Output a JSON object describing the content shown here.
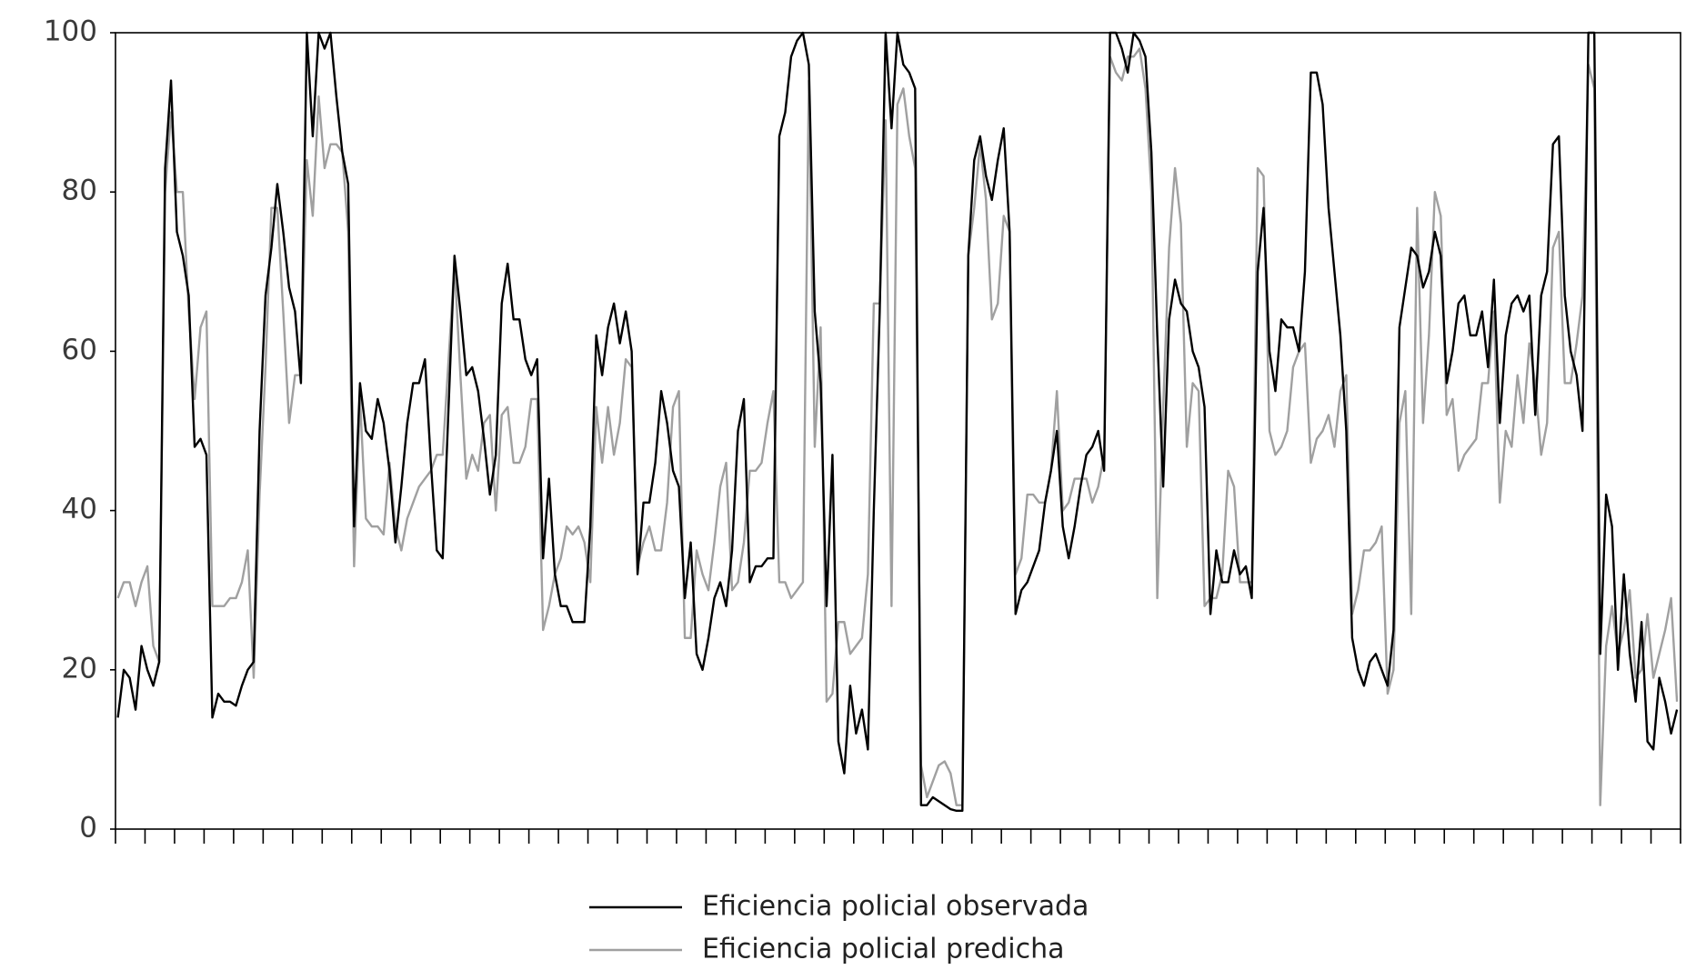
{
  "chart_data": {
    "type": "line",
    "series": [
      {
        "name": "Eficiencia policial observada",
        "color": "#000000",
        "values": [
          14,
          20,
          19,
          15,
          23,
          20,
          18,
          21,
          83,
          94,
          75,
          72,
          67,
          48,
          49,
          47,
          14,
          17,
          16,
          16,
          15.5,
          18,
          20,
          21,
          50,
          67,
          73,
          81,
          75,
          68,
          65,
          56,
          100,
          87,
          100,
          98,
          100,
          92,
          85,
          81,
          38,
          56,
          50,
          49,
          54,
          51,
          45,
          36,
          43,
          51,
          56,
          56,
          59,
          46,
          35,
          34,
          53,
          72,
          65,
          57,
          58,
          55,
          49,
          42,
          47,
          66,
          71,
          64,
          64,
          59,
          57,
          59,
          34,
          44,
          32,
          28,
          28,
          26,
          26,
          26,
          38,
          62,
          57,
          63,
          66,
          61,
          65,
          60,
          32,
          41,
          41,
          46,
          55,
          51,
          45,
          43,
          29,
          36,
          22,
          20,
          24,
          29,
          31,
          28,
          35,
          50,
          54,
          31,
          33,
          33,
          34,
          34,
          87,
          90,
          97,
          99,
          100,
          96,
          65,
          56,
          28,
          47,
          11,
          7,
          18,
          12,
          15,
          10,
          40,
          65,
          100,
          88,
          100,
          96,
          95,
          93,
          3,
          3,
          4,
          3.5,
          3,
          2.5,
          2.3,
          2.3,
          72,
          84,
          87,
          82,
          79,
          84,
          88,
          75,
          27,
          30,
          31,
          33,
          35,
          41,
          45,
          50,
          38,
          34,
          38,
          43,
          47,
          48,
          50,
          45,
          100,
          100,
          98,
          95,
          100,
          99,
          97,
          85,
          62,
          43,
          64,
          69,
          66,
          65,
          60,
          58,
          53,
          27,
          35,
          31,
          31,
          35,
          32,
          33,
          29,
          70,
          78,
          60,
          55,
          64,
          63,
          63,
          60,
          70,
          95,
          95,
          91,
          78,
          70,
          62,
          50,
          24,
          20,
          18,
          21,
          22,
          20,
          18,
          25,
          63,
          68,
          73,
          72,
          68,
          70,
          75,
          72,
          56,
          60,
          66,
          67,
          62,
          62,
          65,
          58,
          69,
          51,
          62,
          66,
          67,
          65,
          67,
          52,
          67,
          70,
          86,
          87,
          67,
          60,
          57,
          50,
          100,
          100,
          22,
          42,
          38,
          20,
          32,
          22,
          16,
          26,
          11,
          10,
          19,
          16,
          12,
          15
        ]
      },
      {
        "name": "Eficiencia policial predicha",
        "color": "#a0a0a0",
        "values": [
          29,
          31,
          31,
          28,
          31,
          33,
          23,
          21,
          80,
          90,
          80,
          80,
          65,
          54,
          63,
          65,
          28,
          28,
          28,
          29,
          29,
          31,
          35,
          19,
          42,
          58,
          78,
          78,
          65,
          51,
          57,
          57,
          84,
          77,
          92,
          83,
          86,
          86,
          85,
          75,
          33,
          54,
          39,
          38,
          38,
          37,
          46,
          38,
          35,
          39,
          41,
          43,
          44,
          45,
          47,
          47,
          59,
          71,
          57,
          44,
          47,
          45,
          51,
          52,
          40,
          52,
          53,
          46,
          46,
          48,
          54,
          54,
          25,
          28,
          32,
          34,
          38,
          37,
          38,
          36,
          31,
          53,
          46,
          53,
          47,
          51,
          59,
          58,
          33,
          36,
          38,
          35,
          35,
          41,
          53,
          55,
          24,
          24,
          35,
          32,
          30,
          36,
          43,
          46,
          30,
          31,
          36,
          45,
          45,
          46,
          51,
          55,
          31,
          31,
          29,
          30,
          31,
          94,
          48,
          63,
          16,
          17,
          26,
          26,
          22,
          23,
          24,
          32,
          66,
          66,
          89,
          28,
          91,
          93,
          87,
          83,
          8,
          4,
          6,
          8,
          8.5,
          7,
          3,
          3,
          72,
          78,
          86,
          79,
          64,
          66,
          77,
          75,
          32,
          34,
          42,
          42,
          41,
          41,
          45,
          55,
          40,
          41,
          44,
          44,
          44,
          41,
          43,
          47,
          97,
          95,
          94,
          97,
          97,
          98,
          93,
          80,
          29,
          53,
          73,
          83,
          76,
          48,
          56,
          55,
          28,
          29,
          29,
          32,
          45,
          43,
          31,
          31,
          31,
          83,
          82,
          50,
          47,
          48,
          50,
          58,
          60,
          61,
          46,
          49,
          50,
          52,
          48,
          55,
          57,
          27,
          30,
          35,
          35,
          36,
          38,
          17,
          20,
          51,
          55,
          27,
          78,
          51,
          62,
          80,
          77,
          52,
          54,
          45,
          47,
          48,
          49,
          56,
          56,
          65,
          41,
          50,
          48,
          57,
          51,
          61,
          56,
          47,
          51,
          73,
          75,
          56,
          56,
          61,
          67,
          96,
          93,
          3,
          23,
          28,
          22,
          25,
          30,
          19,
          20,
          27,
          19,
          22,
          25,
          29,
          16
        ]
      }
    ],
    "ylim": [
      0,
      100
    ],
    "yticks": [
      0,
      20,
      40,
      60,
      80,
      100
    ],
    "grid": false
  }
}
